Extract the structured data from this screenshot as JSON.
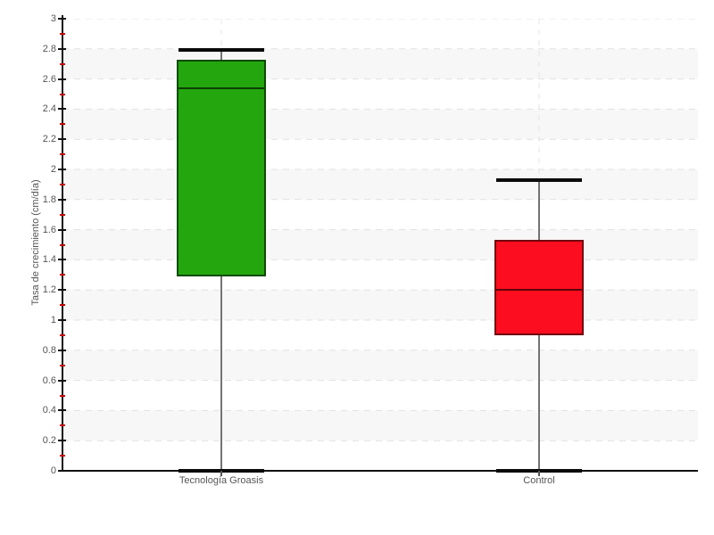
{
  "chart_data": {
    "type": "boxplot",
    "title": "",
    "ylabel": "Tasa de crecimiento (cm/día)",
    "xlabel": "",
    "ylim": [
      0,
      3
    ],
    "y_major_step": 0.2,
    "y_minor_step": 0.1,
    "y_tick_labels": [
      "3",
      "2.8",
      "2.6",
      "2.4",
      "2.2",
      "2",
      "1.8",
      "1.6",
      "1.4",
      "1.2",
      "1",
      "0.8",
      "0.6",
      "0.4",
      "0.2",
      "0"
    ],
    "categories": [
      "Tecnología Groasis",
      "Control"
    ],
    "series": [
      {
        "name": "Tecnología Groasis",
        "color": "#23a60e",
        "min": 0,
        "q1": 1.29,
        "median": 2.54,
        "q3": 2.73,
        "max": 2.79
      },
      {
        "name": "Control",
        "color": "#fc0d1f",
        "min": 0,
        "q1": 0.9,
        "median": 1.2,
        "q3": 1.53,
        "max": 1.93
      }
    ],
    "grid": {
      "stripes": true,
      "stripe_color": "#f7f7f7",
      "h_gridline_color": "#e1e1e1",
      "v_guide_color": "#e4e4e4",
      "gridline_style": "dashed"
    },
    "legend": {
      "visible": false
    },
    "colors": {
      "axis": "#111111",
      "minor_tick": "#cc0000",
      "text": "#555555",
      "whisker": "#737373",
      "whisker_cap": "#0a0a0a"
    }
  }
}
